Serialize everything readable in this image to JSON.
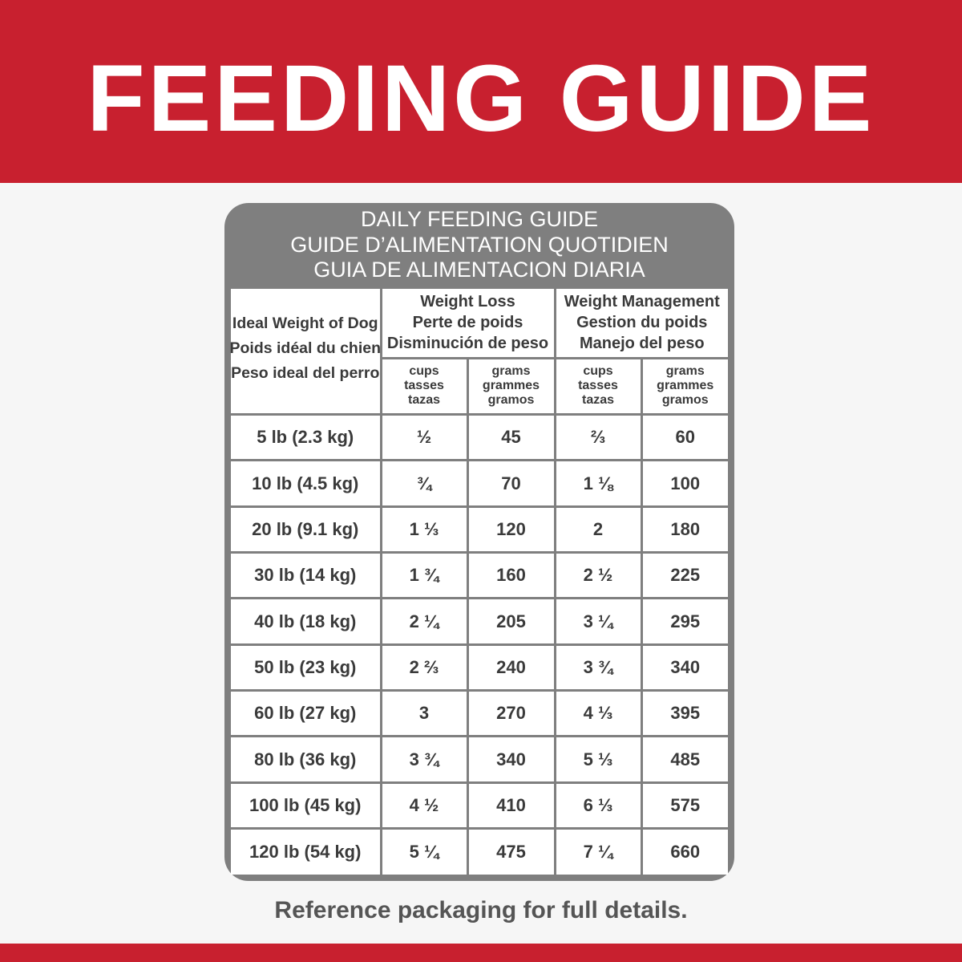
{
  "header": {
    "title": "FEEDING GUIDE"
  },
  "table": {
    "title": [
      "DAILY FEEDING GUIDE",
      "GUIDE D’ALIMENTATION QUOTIDIEN",
      "GUIA DE ALIMENTACION DIARIA"
    ],
    "weight_header": [
      "Ideal Weight of Dog",
      "Poids idéal du chien",
      "Peso ideal del perro"
    ],
    "groups": [
      {
        "label": [
          "Weight Loss",
          "Perte de poids",
          "Disminución de peso"
        ],
        "units": [
          [
            "cups",
            "tasses",
            "tazas"
          ],
          [
            "grams",
            "grammes",
            "gramos"
          ]
        ]
      },
      {
        "label": [
          "Weight Management",
          "Gestion du poids",
          "Manejo del peso"
        ],
        "units": [
          [
            "cups",
            "tasses",
            "tazas"
          ],
          [
            "grams",
            "grammes",
            "gramos"
          ]
        ]
      }
    ],
    "rows": [
      [
        "5 lb (2.3 kg)",
        "½",
        "45",
        "⅔",
        "60"
      ],
      [
        "10 lb (4.5 kg)",
        "¾",
        "70",
        "1 ⅛",
        "100"
      ],
      [
        "20 lb (9.1 kg)",
        "1 ⅓",
        "120",
        "2",
        "180"
      ],
      [
        "30 lb (14 kg)",
        "1 ¾",
        "160",
        "2 ½",
        "225"
      ],
      [
        "40 lb (18 kg)",
        "2 ¼",
        "205",
        "3 ¼",
        "295"
      ],
      [
        "50 lb (23 kg)",
        "2 ⅔",
        "240",
        "3 ¾",
        "340"
      ],
      [
        "60 lb (27 kg)",
        "3",
        "270",
        "4 ⅓",
        "395"
      ],
      [
        "80 lb (36 kg)",
        "3 ¾",
        "340",
        "5 ⅓",
        "485"
      ],
      [
        "100 lb (45 kg)",
        "4 ½",
        "410",
        "6 ⅓",
        "575"
      ],
      [
        "120 lb (54 kg)",
        "5 ¼",
        "475",
        "7 ¼",
        "660"
      ]
    ]
  },
  "footer": {
    "note": "Reference packaging for full details."
  }
}
